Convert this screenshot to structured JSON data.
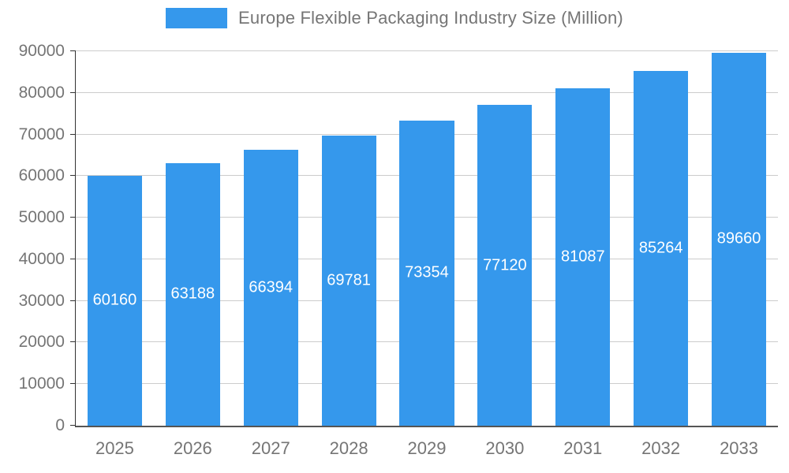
{
  "legend": {
    "title": "Europe Flexible Packaging Industry Size (Million)"
  },
  "colors": {
    "bar": "#3598EC",
    "legend_swatch": "#3598EC",
    "axis_text": "#757575",
    "value_label_text": "#ffffff",
    "gridline": "#cccccc",
    "axis_line": "#333333",
    "background": "#ffffff"
  },
  "chart_data": {
    "type": "bar",
    "title": "Europe Flexible Packaging Industry Size (Million)",
    "categories": [
      "2025",
      "2026",
      "2027",
      "2028",
      "2029",
      "2030",
      "2031",
      "2032",
      "2033"
    ],
    "values": [
      60160,
      63188,
      66394,
      69781,
      73354,
      77120,
      81087,
      85264,
      89660
    ],
    "xlabel": "",
    "ylabel": "",
    "ylim": [
      0,
      90000
    ],
    "ytick_step": 10000,
    "ytick_labels": [
      "0",
      "10000",
      "20000",
      "30000",
      "40000",
      "50000",
      "60000",
      "70000",
      "80000",
      "90000"
    ],
    "grid": true,
    "legend_position": "top-center",
    "data_labels_position": "inside-center",
    "bar_band_fraction": 0.7
  }
}
